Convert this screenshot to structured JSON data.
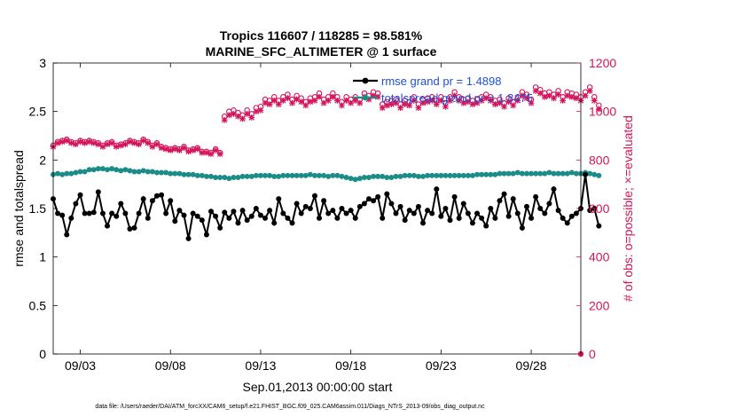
{
  "chart_data": {
    "type": "line",
    "title": "Tropics 116607 / 118285 = 98.581%",
    "subtitle": "MARINE_SFC_ALTIMETER @ 1 surface",
    "xlabel": "Sep.01,2013 00:00:00 start",
    "ylabel_left": "rmse and totalspread",
    "ylabel_right": "# of obs: o=possible; ×=evaluated",
    "x_tick_labels": [
      "09/03",
      "09/08",
      "09/13",
      "09/18",
      "09/23",
      "09/28"
    ],
    "x_tick_days": [
      3,
      8,
      13,
      18,
      23,
      28
    ],
    "xlim": [
      1.5,
      30.75
    ],
    "ylim_left": [
      0,
      3
    ],
    "y_ticks_left": [
      "0",
      "0.5",
      "1",
      "1.5",
      "2",
      "2.5",
      "3"
    ],
    "ylim_right": [
      0,
      1200
    ],
    "y_ticks_right": [
      "0",
      "200",
      "400",
      "600",
      "800",
      "1000",
      "1200"
    ],
    "footnote": "data file: /Users/raeder/DAI/ATM_forcXX/CAM6_setup/f.e21.FHIST_BGC.f09_025.CAM6assim.011/Diags_NTrS_2013-09/obs_diag_output.nc",
    "colors": {
      "rmse": "#000000",
      "spread": "#1b8c87",
      "obs": "#d4145a",
      "legend_text": "#1f4fd6"
    },
    "series": [
      {
        "name": "rmse grand pr = 1.4898",
        "axis": "left",
        "x_start": 1.5,
        "x_step": 0.25,
        "values": [
          1.6,
          1.45,
          1.43,
          1.23,
          1.4,
          1.55,
          1.64,
          1.45,
          1.45,
          1.46,
          1.67,
          1.45,
          1.32,
          1.45,
          1.42,
          1.55,
          1.45,
          1.29,
          1.3,
          1.45,
          1.6,
          1.4,
          1.58,
          1.63,
          1.64,
          1.45,
          1.58,
          1.37,
          1.48,
          1.43,
          1.19,
          1.45,
          1.42,
          1.38,
          1.23,
          1.47,
          1.42,
          1.3,
          1.46,
          1.4,
          1.47,
          1.35,
          1.48,
          1.38,
          1.42,
          1.5,
          1.43,
          1.4,
          1.48,
          1.35,
          1.6,
          1.45,
          1.4,
          1.35,
          1.55,
          1.45,
          1.52,
          1.5,
          1.63,
          1.4,
          1.58,
          1.45,
          1.48,
          1.4,
          1.5,
          1.45,
          1.48,
          1.4,
          1.52,
          1.55,
          1.6,
          1.58,
          1.62,
          1.4,
          1.65,
          1.55,
          1.45,
          1.52,
          1.38,
          1.48,
          1.45,
          1.52,
          1.35,
          1.48,
          1.45,
          1.7,
          1.42,
          1.5,
          1.38,
          1.62,
          1.4,
          1.55,
          1.45,
          1.35,
          1.45,
          1.4,
          1.32,
          1.5,
          1.4,
          1.58,
          1.65,
          1.42,
          1.6,
          1.45,
          1.3,
          1.52,
          1.4,
          1.62,
          1.5,
          1.45,
          1.55,
          1.7,
          1.48,
          1.4,
          1.35,
          1.42,
          1.45,
          1.5,
          1.85,
          1.48,
          1.5,
          1.32
        ]
      },
      {
        "name": "totalspread grand pr = 1.8475",
        "axis": "left",
        "x_start": 1.5,
        "x_step": 0.25,
        "values": [
          1.85,
          1.86,
          1.85,
          1.86,
          1.86,
          1.87,
          1.88,
          1.88,
          1.9,
          1.9,
          1.91,
          1.91,
          1.9,
          1.91,
          1.9,
          1.89,
          1.9,
          1.89,
          1.88,
          1.88,
          1.89,
          1.88,
          1.88,
          1.87,
          1.87,
          1.87,
          1.86,
          1.86,
          1.86,
          1.85,
          1.85,
          1.85,
          1.84,
          1.84,
          1.83,
          1.83,
          1.82,
          1.82,
          1.82,
          1.81,
          1.82,
          1.82,
          1.83,
          1.83,
          1.83,
          1.84,
          1.84,
          1.84,
          1.84,
          1.83,
          1.83,
          1.84,
          1.84,
          1.84,
          1.84,
          1.84,
          1.84,
          1.85,
          1.84,
          1.84,
          1.84,
          1.83,
          1.84,
          1.84,
          1.83,
          1.82,
          1.81,
          1.8,
          1.81,
          1.82,
          1.82,
          1.83,
          1.83,
          1.83,
          1.82,
          1.82,
          1.83,
          1.83,
          1.84,
          1.84,
          1.84,
          1.83,
          1.83,
          1.84,
          1.84,
          1.84,
          1.84,
          1.84,
          1.84,
          1.84,
          1.84,
          1.84,
          1.84,
          1.84,
          1.85,
          1.85,
          1.85,
          1.85,
          1.85,
          1.86,
          1.86,
          1.86,
          1.86,
          1.87,
          1.86,
          1.86,
          1.86,
          1.86,
          1.86,
          1.86,
          1.87,
          1.86,
          1.86,
          1.86,
          1.86,
          1.87,
          1.86,
          1.86,
          1.87,
          1.86,
          1.85,
          1.84
        ]
      },
      {
        "name": "obs possible",
        "axis": "right",
        "marker": "o",
        "x_start": 1.5,
        "x_step": 0.25,
        "values": [
          860,
          875,
          880,
          885,
          875,
          870,
          880,
          875,
          880,
          875,
          870,
          860,
          870,
          875,
          860,
          865,
          870,
          880,
          875,
          870,
          885,
          875,
          860,
          870,
          855,
          850,
          845,
          850,
          845,
          855,
          840,
          845,
          850,
          835,
          835,
          830,
          845,
          830,
          980,
          1000,
          1005,
          995,
          985,
          1005,
          990,
          1015,
          1020,
          1050,
          1045,
          1060,
          1045,
          1060,
          1070,
          1050,
          1065,
          1055,
          1040,
          1055,
          1060,
          1075,
          1050,
          1060,
          1075,
          1060,
          1040,
          1060,
          1050,
          1060,
          1050,
          1075,
          1065,
          1080,
          1075,
          1030,
          1040,
          1045,
          1050,
          1030,
          1045,
          1040,
          1060,
          1030,
          1050,
          1055,
          1060,
          1045,
          1060,
          1035,
          1060,
          1080,
          1060,
          1050,
          1055,
          1045,
          1050,
          1060,
          1070,
          1060,
          1045,
          1050,
          1035,
          1055,
          1040,
          1060,
          1080,
          1070,
          1050,
          1100,
          1090,
          1075,
          1080,
          1070,
          1085,
          1060,
          1080,
          1075,
          1070,
          1060,
          1080,
          1100,
          1060,
          1025
        ]
      },
      {
        "name": "obs evaluated",
        "axis": "right",
        "marker": "x",
        "x_start": 1.5,
        "x_step": 0.25,
        "values": [
          855,
          870,
          875,
          880,
          870,
          865,
          875,
          870,
          875,
          870,
          865,
          855,
          865,
          870,
          855,
          860,
          865,
          875,
          870,
          865,
          880,
          870,
          855,
          865,
          850,
          845,
          840,
          845,
          840,
          850,
          835,
          840,
          845,
          830,
          830,
          825,
          840,
          825,
          965,
          985,
          990,
          980,
          970,
          990,
          975,
          1000,
          1005,
          1035,
          1030,
          1045,
          1030,
          1045,
          1055,
          1035,
          1050,
          1040,
          1025,
          1040,
          1045,
          1060,
          1035,
          1045,
          1060,
          1045,
          1025,
          1045,
          1035,
          1045,
          1035,
          1060,
          1050,
          1065,
          1060,
          1015,
          1025,
          1030,
          1035,
          1015,
          1030,
          1025,
          1045,
          1015,
          1035,
          1040,
          1045,
          1030,
          1045,
          1020,
          1045,
          1065,
          1045,
          1035,
          1040,
          1030,
          1035,
          1045,
          1055,
          1045,
          1030,
          1035,
          1020,
          1040,
          1025,
          1045,
          1065,
          1055,
          1035,
          1085,
          1075,
          1060,
          1065,
          1055,
          1070,
          1045,
          1065,
          1060,
          1055,
          1045,
          1065,
          1085,
          1045,
          1010
        ]
      }
    ],
    "extra_points": [
      {
        "axis": "right",
        "x": 30.75,
        "y": 0
      }
    ],
    "legend": {
      "placement": "top-right"
    },
    "grid": false
  }
}
